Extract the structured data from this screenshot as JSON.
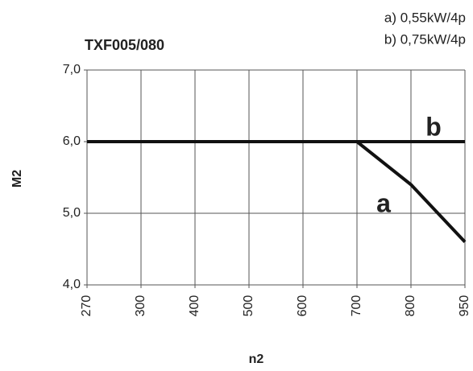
{
  "chart_data": {
    "type": "line",
    "title": "TXF005/080",
    "annotations": [
      "a) 0,55kW/4p",
      "b) 0,75kW/4p"
    ],
    "x_label": "n2",
    "y_label": "M2",
    "categories": [
      "270",
      "300",
      "400",
      "500",
      "600",
      "700",
      "800",
      "950"
    ],
    "series": [
      {
        "name": "a",
        "color": "#111111",
        "values": [
          6,
          6,
          6,
          6,
          6,
          6,
          5.4,
          4.6
        ]
      },
      {
        "name": "b",
        "color": "#111111",
        "values": [
          6,
          6,
          6,
          6,
          6,
          6,
          6,
          6
        ]
      }
    ],
    "ylim": [
      4,
      7
    ],
    "yticks": [
      {
        "value": 4,
        "label": "4,0"
      },
      {
        "value": 5,
        "label": "5,0"
      },
      {
        "value": 6,
        "label": "6,0"
      },
      {
        "value": 7,
        "label": "7,0"
      }
    ],
    "grid": true
  }
}
